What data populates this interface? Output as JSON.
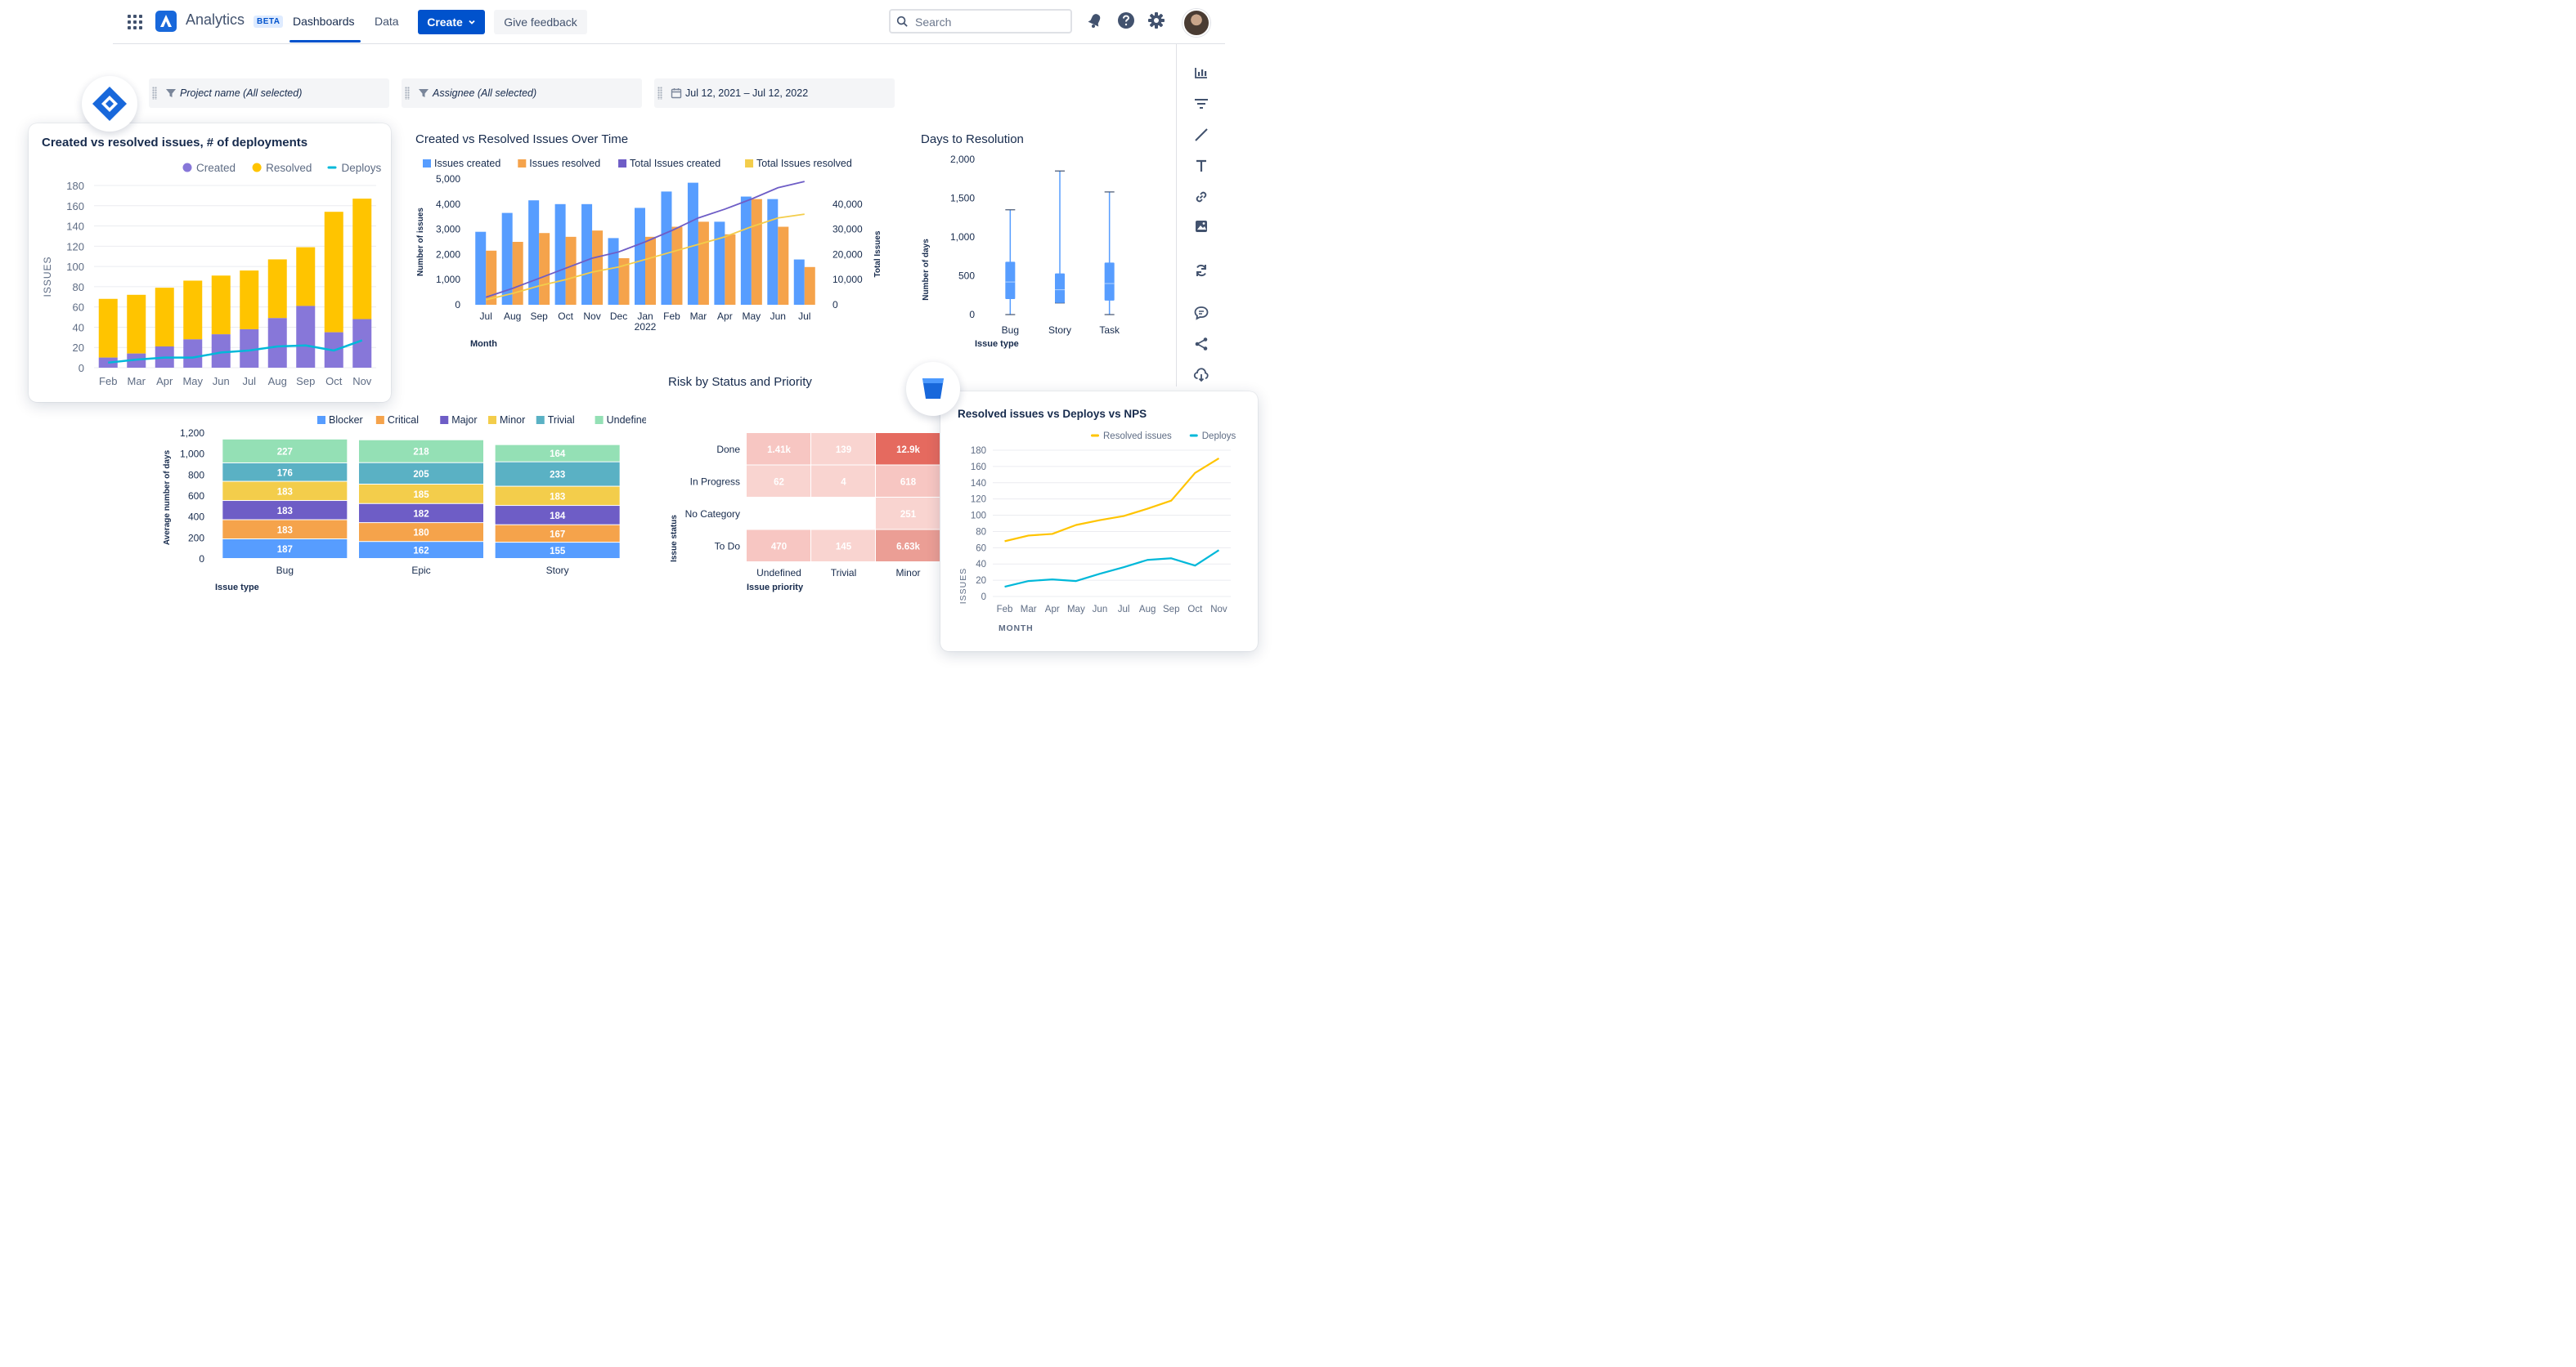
{
  "nav": {
    "app_name": "Analytics",
    "beta": "BETA",
    "dashboards": "Dashboards",
    "data": "Data",
    "create": "Create",
    "feedback": "Give feedback",
    "search_placeholder": "Search"
  },
  "filters": {
    "project": "Project name (All selected)",
    "assignee": "Assignee (All selected)",
    "date_from": "Jul 12, 2021",
    "date_sep": "–",
    "date_to": "Jul 12, 2022"
  },
  "chart_data": [
    {
      "id": "deployments",
      "type": "bar",
      "title": "Created vs resolved issues, # of deployments",
      "ylabel": "ISSUES",
      "ylim": [
        0,
        180
      ],
      "yticks": [
        0,
        20,
        40,
        60,
        80,
        100,
        120,
        140,
        160,
        180
      ],
      "categories": [
        "Feb",
        "Mar",
        "Apr",
        "May",
        "Jun",
        "Jul",
        "Aug",
        "Sep",
        "Oct",
        "Nov"
      ],
      "series": [
        {
          "name": "Created",
          "color": "#8777D9",
          "values": [
            10,
            14,
            21,
            28,
            33,
            38,
            49,
            61,
            35,
            48
          ]
        },
        {
          "name": "Resolved",
          "color": "#FFC400",
          "values": [
            58,
            58,
            58,
            58,
            58,
            58,
            58,
            58,
            119,
            119
          ]
        },
        {
          "name": "Deploys",
          "color": "#00B8D9",
          "values": [
            5,
            8,
            10,
            10,
            15,
            17,
            21,
            22,
            17,
            27
          ]
        }
      ],
      "legend": "top-right"
    },
    {
      "id": "over_time",
      "type": "bar",
      "title": "Created vs Resolved Issues Over Time",
      "xlabel": "Month",
      "ylabel": "Number of issues",
      "y2label": "Total Issues",
      "ylim": [
        0,
        5000
      ],
      "yticks": [
        "0",
        "1,000",
        "2,000",
        "3,000",
        "4,000",
        "5,000"
      ],
      "y2lim": [
        0,
        50000
      ],
      "y2ticks": [
        "0",
        "10,000",
        "20,000",
        "30,000",
        "40,000"
      ],
      "categories": [
        "Jul",
        "Aug",
        "Sep",
        "Oct",
        "Nov",
        "Dec",
        "Jan",
        "Feb",
        "Mar",
        "Apr",
        "May",
        "Jun",
        "Jul"
      ],
      "year_label": "2022",
      "series": [
        {
          "name": "Issues created",
          "color": "#579DFF",
          "values": [
            2900,
            3650,
            4150,
            4000,
            4000,
            2650,
            3850,
            4500,
            4850,
            3300,
            4300,
            4200,
            1800
          ]
        },
        {
          "name": "Issues resolved",
          "color": "#F5A34B",
          "values": [
            2150,
            2500,
            2850,
            2700,
            2950,
            1850,
            2700,
            3100,
            3300,
            2800,
            4200,
            3100,
            1500
          ]
        },
        {
          "name": "Total Issues created",
          "color": "#6E5DC6",
          "values": [
            3000,
            6500,
            10500,
            14500,
            18500,
            21000,
            25000,
            29500,
            34500,
            38000,
            42000,
            46500,
            49000
          ]
        },
        {
          "name": "Total Issues resolved",
          "color": "#F3CD4B",
          "values": [
            2000,
            4500,
            7500,
            10000,
            13000,
            15000,
            18000,
            21000,
            24000,
            27000,
            31000,
            34500,
            36000
          ]
        }
      ],
      "legend": "top"
    },
    {
      "id": "days_resolution",
      "type": "box",
      "title": "Days to Resolution",
      "xlabel": "Issue type",
      "ylabel": "Number of days",
      "ylim": [
        0,
        2000
      ],
      "yticks": [
        "0",
        "500",
        "1,000",
        "1,500",
        "2,000"
      ],
      "categories": [
        "Bug",
        "Story",
        "Task"
      ],
      "boxes": [
        {
          "min": 0,
          "q1": 200,
          "median": 420,
          "q3": 680,
          "max": 1350
        },
        {
          "min": 150,
          "q1": 150,
          "median": 320,
          "q3": 530,
          "max": 1850
        },
        {
          "min": 0,
          "q1": 180,
          "median": 400,
          "q3": 670,
          "max": 1580
        }
      ],
      "color": "#579DFF"
    },
    {
      "id": "stacked_type",
      "type": "bar",
      "xlabel": "Issue type",
      "ylabel": "Average number of days",
      "ylim": [
        0,
        1200
      ],
      "yticks": [
        "0",
        "200",
        "400",
        "600",
        "800",
        "1,000",
        "1,200"
      ],
      "categories": [
        "Bug",
        "Epic",
        "Story"
      ],
      "series": [
        {
          "name": "Blocker",
          "color": "#579DFF",
          "values": [
            187,
            162,
            155
          ]
        },
        {
          "name": "Critical",
          "color": "#F5A34B",
          "values": [
            183,
            180,
            167
          ]
        },
        {
          "name": "Major",
          "color": "#6E5DC6",
          "values": [
            183,
            182,
            184
          ]
        },
        {
          "name": "Minor",
          "color": "#F3CD4B",
          "values": [
            183,
            185,
            183
          ]
        },
        {
          "name": "Trivial",
          "color": "#5AB1C4",
          "values": [
            176,
            205,
            233
          ]
        },
        {
          "name": "Undefined",
          "color": "#94E0B5",
          "values": [
            227,
            218,
            164
          ]
        }
      ],
      "legend": "top"
    },
    {
      "id": "risk",
      "type": "heatmap",
      "title": "Risk by Status and Priority",
      "xlabel": "Issue priority",
      "ylabel": "Issue status",
      "rows": [
        "Done",
        "In Progress",
        "No Category",
        "To Do"
      ],
      "cols": [
        "Undefined",
        "Trivial",
        "Minor"
      ],
      "cells": [
        [
          {
            "label": "1.41k",
            "color": "#F7C6C2"
          },
          {
            "label": "139",
            "color": "#F9D4D0"
          },
          {
            "label": "12.9k",
            "color": "#E56A5F"
          }
        ],
        [
          {
            "label": "62",
            "color": "#F9D4D0"
          },
          {
            "label": "4",
            "color": "#F9D4D0"
          },
          {
            "label": "618",
            "color": "#F7C6C2"
          }
        ],
        [
          {
            "label": "",
            "color": "#FFFFFF"
          },
          {
            "label": "",
            "color": "#FFFFFF"
          },
          {
            "label": "251",
            "color": "#F9D4D0"
          }
        ],
        [
          {
            "label": "470",
            "color": "#F7C6C2"
          },
          {
            "label": "145",
            "color": "#F9D4D0"
          },
          {
            "label": "6.63k",
            "color": "#EB9E95"
          }
        ]
      ]
    },
    {
      "id": "nps",
      "type": "line",
      "title": "Resolved issues vs Deploys vs NPS",
      "xlabel": "MONTH",
      "ylabel": "ISSUES",
      "ylim": [
        0,
        180
      ],
      "yticks": [
        0,
        20,
        40,
        60,
        80,
        100,
        120,
        140,
        160,
        180
      ],
      "categories": [
        "Feb",
        "Mar",
        "Apr",
        "May",
        "Jun",
        "Jul",
        "Aug",
        "Sep",
        "Oct",
        "Nov"
      ],
      "series": [
        {
          "name": "Resolved issues",
          "color": "#FFC400",
          "values": [
            68,
            75,
            77,
            88,
            94,
            99,
            108,
            118,
            152,
            170
          ]
        },
        {
          "name": "Deploys",
          "color": "#00B8D9",
          "values": [
            12,
            19,
            21,
            19,
            28,
            36,
            45,
            47,
            38,
            57
          ]
        }
      ],
      "legend": "top-right"
    }
  ]
}
